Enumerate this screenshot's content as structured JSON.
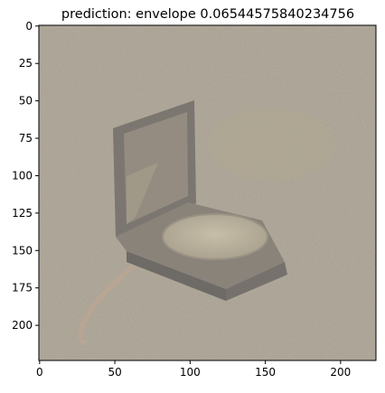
{
  "chart_data": {
    "type": "image",
    "title": "prediction: envelope 0.06544575840234756",
    "xlim": [
      -0.5,
      223.5
    ],
    "ylim": [
      223.5,
      -0.5
    ],
    "x_ticks": [
      0,
      50,
      100,
      150,
      200
    ],
    "y_ticks": [
      0,
      25,
      50,
      75,
      100,
      125,
      150,
      175,
      200
    ],
    "x_tick_labels": [
      "0",
      "50",
      "100",
      "150",
      "200"
    ],
    "y_tick_labels": [
      "0",
      "25",
      "50",
      "75",
      "100",
      "125",
      "150",
      "175",
      "200"
    ],
    "image_description_colors": {
      "background": "#a9a192",
      "object_dark": "#7b7670",
      "object_mid": "#8e877d",
      "pad_light": "#bcb49f"
    }
  }
}
